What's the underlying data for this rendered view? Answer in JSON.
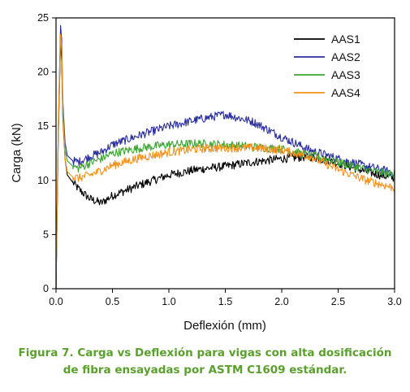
{
  "chart_data": {
    "type": "line",
    "xlabel": "Deflexión (mm)",
    "ylabel": "Carga (kN)",
    "xlim": [
      0,
      3.0
    ],
    "ylim": [
      0,
      25
    ],
    "x_ticks": [
      "0.0",
      "0.5",
      "1.0",
      "1.5",
      "2.0",
      "2.5",
      "3.0"
    ],
    "y_ticks": [
      "0",
      "5",
      "10",
      "15",
      "20",
      "25"
    ],
    "grid": false,
    "legend_position": "top-right",
    "x": [
      0.0,
      0.02,
      0.04,
      0.05,
      0.06,
      0.08,
      0.1,
      0.15,
      0.2,
      0.3,
      0.4,
      0.5,
      0.75,
      1.0,
      1.25,
      1.5,
      1.75,
      2.0,
      2.25,
      2.5,
      2.75,
      3.0
    ],
    "series": [
      {
        "name": "AAS1",
        "color": "#000000",
        "values": [
          0,
          14,
          22.8,
          21,
          16,
          12,
          10.5,
          9.8,
          9.2,
          8.3,
          7.9,
          8.6,
          9.6,
          10.5,
          11.0,
          11.3,
          11.7,
          12.0,
          12.2,
          11.6,
          10.8,
          10.2
        ]
      },
      {
        "name": "AAS2",
        "color": "#2b2f9e",
        "values": [
          0,
          15,
          24.3,
          23,
          17.5,
          13.5,
          12.3,
          11.8,
          11.7,
          12.2,
          12.6,
          13.3,
          14.2,
          15.0,
          15.6,
          16.1,
          15.4,
          14.0,
          12.8,
          12.0,
          11.3,
          10.7
        ]
      },
      {
        "name": "AAS3",
        "color": "#3fa535",
        "values": [
          0,
          14.5,
          23.2,
          22,
          17,
          12.8,
          11.8,
          11.3,
          11.1,
          11.6,
          12.0,
          12.5,
          13.0,
          13.3,
          13.4,
          13.3,
          13.1,
          12.9,
          12.3,
          11.7,
          11.0,
          10.5
        ]
      },
      {
        "name": "AAS4",
        "color": "#f5921b",
        "values": [
          0,
          14.8,
          23.5,
          22.3,
          16.5,
          12.0,
          10.8,
          10.3,
          10.2,
          10.5,
          10.9,
          11.4,
          12.1,
          12.6,
          12.9,
          13.0,
          13.0,
          12.8,
          12.2,
          11.0,
          10.0,
          9.3
        ]
      }
    ]
  },
  "caption": {
    "line1": "Figura 7. Carga vs Deflexión para vigas con alta dosificación",
    "line2": "de fibra ensayadas por ASTM C1609 estándar."
  }
}
